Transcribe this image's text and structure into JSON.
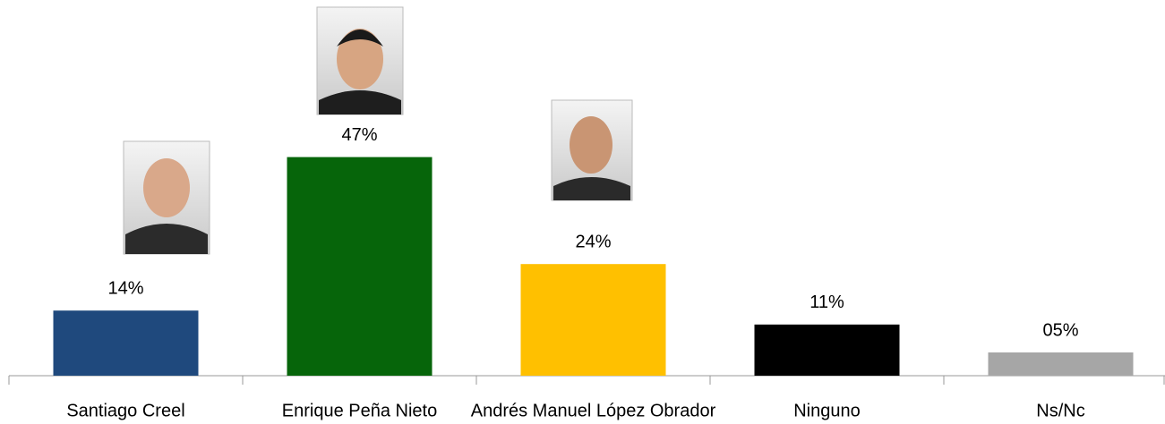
{
  "chart_data": {
    "type": "bar",
    "categories": [
      "Santiago Creel",
      "Enrique Peña Nieto",
      "Andrés Manuel López Obrador",
      "Ninguno",
      "Ns/Nc"
    ],
    "values": [
      14,
      47,
      24,
      11,
      5
    ],
    "value_labels": [
      "14%",
      "47%",
      "24%",
      "11%",
      "05%"
    ],
    "colors": [
      "#1f497d",
      "#06650a",
      "#ffc000",
      "#000000",
      "#a6a6a6"
    ]
  }
}
